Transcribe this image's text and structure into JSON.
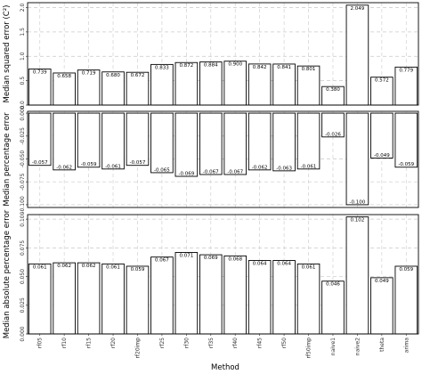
{
  "chart_data": {
    "type": "bar",
    "xlabel": "Method",
    "categories": [
      "rf05",
      "rf10",
      "rf15",
      "rf20",
      "rf20imp",
      "rf25",
      "rf30",
      "rf35",
      "rf40",
      "rf45",
      "rf50",
      "rf50imp",
      "naive1",
      "naive2",
      "theta",
      "arima"
    ],
    "panels": [
      {
        "name": "mse",
        "ylabel": "Median squared error (C²)",
        "ylim": [
          0,
          2.1
        ],
        "yticks": [
          0.0,
          0.5,
          1.0,
          1.5,
          2.0
        ],
        "tick_labels": [
          "0.0",
          "0.5",
          "1.0",
          "1.5",
          "2.0"
        ],
        "values": [
          0.739,
          0.658,
          0.719,
          0.68,
          0.672,
          0.833,
          0.872,
          0.884,
          0.9,
          0.842,
          0.841,
          0.801,
          0.38,
          2.049,
          0.572,
          0.779
        ],
        "labels": [
          "0.739",
          "0.658",
          "0.719",
          "0.680",
          "0.672",
          "0.833",
          "0.872",
          "0.884",
          "0.900",
          "0.842",
          "0.841",
          "0.801",
          "0.380",
          "2.049",
          "0.572",
          "0.779"
        ]
      },
      {
        "name": "mpe",
        "ylabel": "Median percentage error",
        "ylim": [
          -0.103,
          0.002
        ],
        "yticks": [
          0.0,
          -0.025,
          -0.05,
          -0.075,
          -0.1
        ],
        "tick_labels": [
          "0.000",
          "-0.025",
          "-0.050",
          "-0.075",
          "-0.100"
        ],
        "values": [
          -0.057,
          -0.062,
          -0.059,
          -0.061,
          -0.057,
          -0.065,
          -0.069,
          -0.067,
          -0.067,
          -0.062,
          -0.063,
          -0.061,
          -0.026,
          -0.1,
          -0.049,
          -0.059
        ],
        "labels": [
          "-0.057",
          "-0.062",
          "-0.059",
          "-0.061",
          "-0.057",
          "-0.065",
          "-0.069",
          "-0.067",
          "-0.067",
          "-0.062",
          "-0.063",
          "-0.061",
          "-0.026",
          "-0.100",
          "-0.049",
          "-0.059"
        ]
      },
      {
        "name": "mape",
        "ylabel": "Median absolute percentage error",
        "ylim": [
          0,
          0.104
        ],
        "yticks": [
          0.0,
          0.025,
          0.05,
          0.075,
          0.1
        ],
        "tick_labels": [
          "0.000",
          "0.025",
          "0.050",
          "0.075",
          "0.100"
        ],
        "values": [
          0.061,
          0.062,
          0.062,
          0.061,
          0.059,
          0.067,
          0.071,
          0.069,
          0.068,
          0.064,
          0.064,
          0.061,
          0.046,
          0.102,
          0.049,
          0.059
        ],
        "labels": [
          "0.061",
          "0.062",
          "0.062",
          "0.061",
          "0.059",
          "0.067",
          "0.071",
          "0.069",
          "0.068",
          "0.064",
          "0.064",
          "0.061",
          "0.046",
          "0.102",
          "0.049",
          "0.059"
        ]
      }
    ]
  }
}
